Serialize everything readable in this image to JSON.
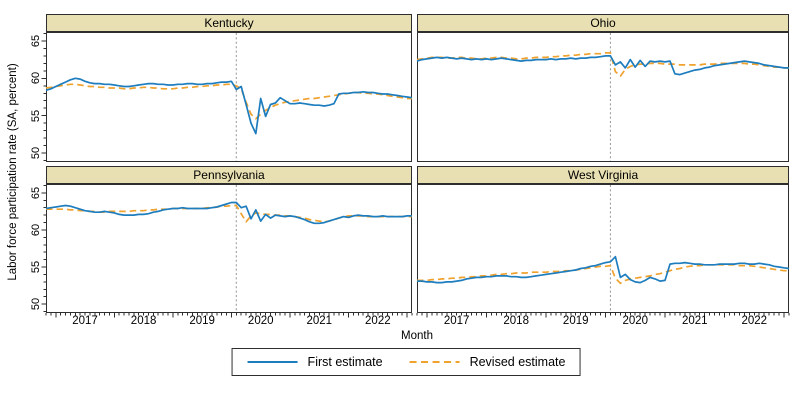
{
  "figure": {
    "y_axis_label": "Labor force participation rate (SA, percent)",
    "x_axis_label": "Month"
  },
  "legend": {
    "items": [
      {
        "label": "First estimate",
        "style": "solid",
        "color": "#1e7dbe"
      },
      {
        "label": "Revised estimate",
        "style": "dashed",
        "color": "#efa22e"
      }
    ]
  },
  "colors": {
    "first_estimate": "#1e7dbe",
    "revised_estimate": "#efa22e",
    "panel_header_bg": "#e8e0b2",
    "frame": "#2e2e2e",
    "vline": "#9e9e9e",
    "background": "#ffffff"
  },
  "chart_data": {
    "type": "line",
    "layout": "2x2-panels",
    "x_frequency": "monthly",
    "x_range": [
      "2016-11",
      "2023-02"
    ],
    "x_tick_years": [
      "2017",
      "2018",
      "2019",
      "2020",
      "2021",
      "2022"
    ],
    "x_label_indices": [
      8,
      20,
      32,
      44,
      56,
      68
    ],
    "x_major_tick_indices": [
      2,
      14,
      26,
      38,
      50,
      62,
      74
    ],
    "y_ticks": [
      50,
      55,
      60,
      65
    ],
    "ylim": [
      48.8,
      66.2
    ],
    "vline_index": 39,
    "vline_date": "2020-02",
    "series_names": [
      "First estimate",
      "Revised estimate"
    ],
    "panels": [
      {
        "title": "Kentucky",
        "first": [
          58.4,
          58.6,
          58.9,
          59.2,
          59.5,
          59.8,
          60.0,
          59.9,
          59.6,
          59.4,
          59.3,
          59.3,
          59.2,
          59.2,
          59.1,
          59.0,
          58.9,
          58.9,
          59.0,
          59.1,
          59.2,
          59.3,
          59.3,
          59.2,
          59.2,
          59.1,
          59.1,
          59.2,
          59.2,
          59.3,
          59.3,
          59.2,
          59.2,
          59.3,
          59.3,
          59.4,
          59.5,
          59.5,
          59.6,
          58.5,
          58.9,
          56.5,
          54.0,
          52.6,
          57.3,
          54.9,
          56.5,
          56.7,
          57.4,
          57.0,
          56.6,
          56.6,
          56.7,
          56.6,
          56.5,
          56.4,
          56.4,
          56.3,
          56.4,
          56.6,
          57.9,
          58.0,
          58.0,
          58.1,
          58.1,
          58.2,
          58.1,
          58.1,
          58.0,
          57.9,
          57.9,
          57.8,
          57.7,
          57.6,
          57.5,
          57.4
        ],
        "revised": [
          58.7,
          58.8,
          58.9,
          59.0,
          59.1,
          59.2,
          59.2,
          59.1,
          59.0,
          58.9,
          58.9,
          58.8,
          58.8,
          58.7,
          58.7,
          58.7,
          58.6,
          58.6,
          58.7,
          58.7,
          58.8,
          58.8,
          58.7,
          58.7,
          58.6,
          58.6,
          58.6,
          58.7,
          58.7,
          58.8,
          58.8,
          58.9,
          58.9,
          59.0,
          59.0,
          59.1,
          59.1,
          59.2,
          59.2,
          59.0,
          58.6,
          56.8,
          55.2,
          54.6,
          55.2,
          55.7,
          56.1,
          56.4,
          56.6,
          56.8,
          56.9,
          57.0,
          57.1,
          57.2,
          57.3,
          57.3,
          57.4,
          57.5,
          57.6,
          57.7,
          57.8,
          57.9,
          58.0,
          58.1,
          58.1,
          58.0,
          58.0,
          57.9,
          57.9,
          57.8,
          57.7,
          57.6,
          57.5,
          57.4,
          57.3,
          57.3
        ]
      },
      {
        "title": "Ohio",
        "first": [
          62.3,
          62.5,
          62.6,
          62.7,
          62.8,
          62.7,
          62.8,
          62.7,
          62.6,
          62.7,
          62.6,
          62.5,
          62.6,
          62.5,
          62.6,
          62.5,
          62.6,
          62.7,
          62.6,
          62.5,
          62.4,
          62.3,
          62.4,
          62.4,
          62.5,
          62.5,
          62.5,
          62.6,
          62.5,
          62.6,
          62.6,
          62.7,
          62.6,
          62.7,
          62.7,
          62.8,
          62.8,
          62.9,
          63.0,
          63.0,
          61.8,
          62.2,
          61.4,
          62.5,
          61.5,
          62.4,
          61.6,
          62.3,
          62.2,
          62.3,
          62.2,
          62.3,
          60.6,
          60.5,
          60.7,
          60.9,
          61.1,
          61.2,
          61.4,
          61.5,
          61.7,
          61.8,
          61.9,
          62.0,
          62.1,
          62.2,
          62.3,
          62.2,
          62.1,
          62.0,
          61.8,
          61.7,
          61.6,
          61.5,
          61.4,
          61.4
        ],
        "revised": [
          62.5,
          62.6,
          62.7,
          62.8,
          62.8,
          62.8,
          62.7,
          62.7,
          62.8,
          62.8,
          62.7,
          62.7,
          62.6,
          62.6,
          62.7,
          62.7,
          62.8,
          62.8,
          62.7,
          62.7,
          62.6,
          62.6,
          62.7,
          62.7,
          62.8,
          62.8,
          62.8,
          62.9,
          62.9,
          63.0,
          63.0,
          63.1,
          63.1,
          63.2,
          63.2,
          63.3,
          63.3,
          63.3,
          63.4,
          63.4,
          60.9,
          60.3,
          61.2,
          61.6,
          61.8,
          61.9,
          61.9,
          62.0,
          62.0,
          62.0,
          61.9,
          61.9,
          61.9,
          61.8,
          61.8,
          61.8,
          61.8,
          61.8,
          61.9,
          61.9,
          61.9,
          62.0,
          62.0,
          62.0,
          62.0,
          62.0,
          62.0,
          61.9,
          61.9,
          61.8,
          61.7,
          61.6,
          61.5,
          61.5,
          61.4,
          61.4
        ]
      },
      {
        "title": "Pennsylvania",
        "first": [
          62.9,
          63.0,
          63.1,
          63.2,
          63.3,
          63.2,
          63.0,
          62.8,
          62.6,
          62.5,
          62.4,
          62.4,
          62.5,
          62.4,
          62.3,
          62.1,
          62.0,
          62.0,
          62.0,
          62.1,
          62.1,
          62.2,
          62.4,
          62.5,
          62.7,
          62.8,
          62.9,
          62.9,
          63.0,
          62.9,
          62.9,
          62.9,
          62.9,
          62.9,
          63.0,
          63.1,
          63.3,
          63.5,
          63.7,
          63.7,
          63.0,
          63.2,
          61.5,
          62.7,
          61.2,
          62.1,
          61.6,
          62.0,
          61.9,
          61.8,
          61.9,
          61.8,
          61.6,
          61.4,
          61.1,
          60.9,
          60.9,
          61.0,
          61.2,
          61.4,
          61.6,
          61.8,
          61.7,
          61.9,
          62.0,
          61.9,
          61.9,
          61.8,
          61.8,
          61.9,
          61.8,
          61.8,
          61.8,
          61.8,
          61.9,
          61.9
        ],
        "revised": [
          62.8,
          62.8,
          62.8,
          62.8,
          62.8,
          62.7,
          62.7,
          62.6,
          62.6,
          62.5,
          62.5,
          62.4,
          62.4,
          62.5,
          62.5,
          62.5,
          62.5,
          62.5,
          62.6,
          62.6,
          62.6,
          62.7,
          62.7,
          62.8,
          62.8,
          62.8,
          62.9,
          62.9,
          62.9,
          62.9,
          62.9,
          62.9,
          62.9,
          63.0,
          63.0,
          63.1,
          63.2,
          63.2,
          63.3,
          63.3,
          62.2,
          61.1,
          61.9,
          62.3,
          62.2,
          62.1,
          62.1,
          62.0,
          62.0,
          61.9,
          61.9,
          61.8,
          61.7,
          61.6,
          61.4,
          61.3,
          61.2,
          61.1,
          61.2,
          61.4,
          61.6,
          61.8,
          61.9,
          61.9,
          61.9,
          61.9,
          61.8,
          61.8,
          61.8,
          61.8,
          61.8,
          61.8,
          61.8,
          61.8,
          61.8,
          61.8
        ]
      },
      {
        "title": "West Virginia",
        "first": [
          53.1,
          53.1,
          53.0,
          53.0,
          52.9,
          52.9,
          53.0,
          53.0,
          53.1,
          53.2,
          53.4,
          53.5,
          53.6,
          53.6,
          53.7,
          53.7,
          53.8,
          53.8,
          53.8,
          53.7,
          53.7,
          53.6,
          53.6,
          53.7,
          53.8,
          53.9,
          54.0,
          54.1,
          54.2,
          54.3,
          54.4,
          54.5,
          54.6,
          54.8,
          54.9,
          55.1,
          55.2,
          55.4,
          55.6,
          55.7,
          56.4,
          53.6,
          54.0,
          53.3,
          53.0,
          52.9,
          53.2,
          53.6,
          53.4,
          53.1,
          53.2,
          55.4,
          55.5,
          55.5,
          55.6,
          55.5,
          55.4,
          55.4,
          55.3,
          55.3,
          55.3,
          55.4,
          55.4,
          55.4,
          55.4,
          55.5,
          55.5,
          55.4,
          55.4,
          55.5,
          55.4,
          55.3,
          55.1,
          55.0,
          54.9,
          54.8
        ],
        "revised": [
          53.2,
          53.2,
          53.2,
          53.3,
          53.3,
          53.4,
          53.4,
          53.5,
          53.5,
          53.6,
          53.6,
          53.7,
          53.7,
          53.8,
          53.8,
          53.9,
          54.0,
          54.0,
          54.1,
          54.1,
          54.2,
          54.2,
          54.2,
          54.3,
          54.3,
          54.3,
          54.3,
          54.4,
          54.4,
          54.4,
          54.5,
          54.5,
          54.6,
          54.7,
          54.8,
          54.9,
          55.0,
          55.1,
          55.1,
          55.2,
          53.5,
          52.8,
          53.2,
          53.4,
          53.5,
          53.6,
          53.7,
          53.8,
          54.0,
          54.1,
          54.3,
          54.5,
          54.7,
          54.8,
          55.0,
          55.1,
          55.2,
          55.2,
          55.3,
          55.3,
          55.3,
          55.3,
          55.3,
          55.3,
          55.3,
          55.2,
          55.2,
          55.2,
          55.1,
          55.0,
          54.9,
          54.8,
          54.7,
          54.6,
          54.5,
          54.5
        ]
      }
    ]
  }
}
